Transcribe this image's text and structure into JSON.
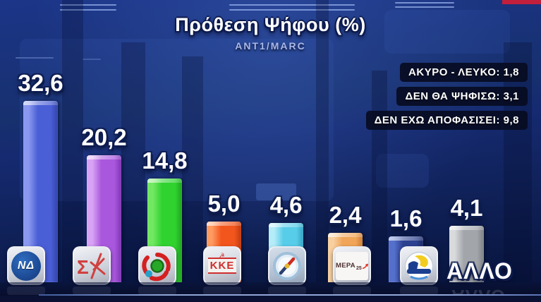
{
  "title": {
    "text": "Πρόθεση Ψήφου (%)",
    "source": "ΑΝΤ1/MARC"
  },
  "side_stats": [
    {
      "label": "ΑΚΥΡΟ - ΛΕΥΚΟ",
      "value": "1,8",
      "text": "ΑΚΥΡΟ - ΛΕΥΚΟ: 1,8"
    },
    {
      "label": "ΔΕΝ ΘΑ ΨΗΦΙΣΩ",
      "value": "3,1",
      "text": "ΔΕΝ ΘΑ ΨΗΦΙΣΩ: 3,1"
    },
    {
      "label": "ΔΕΝ ΕΧΩ ΑΠΟΦΑΣΙΣΕΙ",
      "value": "9,8",
      "text": "ΔΕΝ ΕΧΩ ΑΠΟΦΑΣΙΣΕΙ: 9,8"
    }
  ],
  "chart_data": {
    "type": "bar",
    "title": "Πρόθεση Ψήφου (%)",
    "source": "ΑΝΤ1/MARC",
    "categories": [
      "ΝΔ",
      "ΣΥΡΙΖΑ",
      "ΠΑΣΟΚ",
      "ΚΚΕ",
      "ΠΛΕΥΣΗ ΕΛΕΥΘΕΡΙΑΣ",
      "ΜΕΡΑ25",
      "ΕΛΛΗΝΙΚΗ ΛΥΣΗ",
      "ΑΛΛΟ"
    ],
    "values": [
      32.6,
      20.2,
      14.8,
      5.0,
      4.6,
      2.4,
      1.6,
      4.1
    ],
    "value_labels": [
      "32,6",
      "20,2",
      "14,8",
      "5,0",
      "4,6",
      "2,4",
      "1,6",
      "4,1"
    ],
    "bar_colors": [
      {
        "light": "#8a98f0",
        "base": "#4a5ed6",
        "dark": "#3244a8"
      },
      {
        "light": "#d9a3f5",
        "base": "#a958dd",
        "dark": "#7e35b5"
      },
      {
        "light": "#72e862",
        "base": "#30d230",
        "dark": "#1fa51f"
      },
      {
        "light": "#ff9a60",
        "base": "#f2561d",
        "dark": "#bf3a10"
      },
      {
        "light": "#b4ecf8",
        "base": "#58cde9",
        "dark": "#36a3c4"
      },
      {
        "light": "#f8d0a0",
        "base": "#f0a558",
        "dark": "#cd7f35"
      },
      {
        "light": "#5570cc",
        "base": "#2c4190",
        "dark": "#1d2c68"
      },
      {
        "light": "#d8dadc",
        "base": "#a2a6aa",
        "dark": "#7e8286"
      }
    ],
    "legend_position": "none",
    "grid": false,
    "ylim": [
      0,
      35
    ],
    "extra_notes": [
      "ΑΚΥΡΟ - ΛΕΥΚΟ: 1,8",
      "ΔΕΝ ΘΑ ΨΗΦΙΣΩ: 3,1",
      "ΔΕΝ ΕΧΩ ΑΠΟΦΑΣΙΣΕΙ: 9,8"
    ]
  },
  "logos": {
    "nd": {
      "text": "ΝΔ"
    },
    "kke": {
      "text": "ΚΚΕ"
    },
    "mera25": {
      "text": "ΜΕΡΑ",
      "suffix": "25"
    }
  },
  "other_label": "ΑΛΛΟ"
}
